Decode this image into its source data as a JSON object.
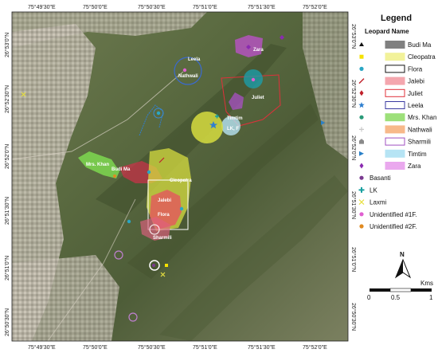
{
  "coords": {
    "top": [
      "75°49'30\"E",
      "75°50'0\"E",
      "75°50'30\"E",
      "75°51'0\"E",
      "75°51'30\"E",
      "75°52'0\"E"
    ],
    "bottom": [
      "75°49'30\"E",
      "75°50'0\"E",
      "75°50'30\"E",
      "75°51'0\"E",
      "75°51'30\"E",
      "75°52'0\"E"
    ],
    "left": [
      "26°53'0\"N",
      "26°52'30\"N",
      "26°52'0\"N",
      "26°51'30\"N",
      "26°51'0\"N",
      "26°50'30\"N"
    ],
    "right": [
      "26°53'0\"N",
      "26°52'30\"N",
      "26°52'0\"N",
      "26°51'30\"N",
      "26°51'0\"N",
      "26°50'30\"N"
    ]
  },
  "map_labels": {
    "leela": "Leela",
    "nathwali": "Nathwali",
    "zara": "Zara",
    "juliet": "Juliet",
    "timtim": "Timtim",
    "lk": "LK, F",
    "mrs_khan": "Mrs. Khan",
    "budi_ma": "Budi Ma",
    "cleopatra": "Cleopatra",
    "jalebi": "Jalebi",
    "flora": "Flora",
    "sharmili": "Sharmili"
  },
  "legend": {
    "title": "Legend",
    "subtitle": "Leopard Name",
    "rows": [
      {
        "label": "Budi Ma",
        "marker": "triangle",
        "mcolor": "#111111",
        "fill": "#808080",
        "stroke": "#808080"
      },
      {
        "label": "Cleopatra",
        "marker": "square",
        "mcolor": "#f5e100",
        "fill": "#f2f29a",
        "stroke": "#f2f29a"
      },
      {
        "label": "Flora",
        "marker": "circle",
        "mcolor": "#2aa6c4",
        "fill": "#ffffff",
        "stroke": "#111111"
      },
      {
        "label": "Jalebi",
        "marker": "slash",
        "mcolor": "#c0202a",
        "fill": "#f4a6ae",
        "stroke": "#f4a6ae"
      },
      {
        "label": "Juliet",
        "marker": "diamond",
        "mcolor": "#c0202a",
        "fill": "#ffffff",
        "stroke": "#e0303a"
      },
      {
        "label": "Leela",
        "marker": "star",
        "mcolor": "#2f7fd0",
        "fill": "#ffffff",
        "stroke": "#3a3aa0"
      },
      {
        "label": "Mrs. Khan",
        "marker": "circle",
        "mcolor": "#2a9a78",
        "fill": "#9de07a",
        "stroke": "#9de07a"
      },
      {
        "label": "Nathwali",
        "marker": "plus",
        "mcolor": "#c8c8c8",
        "fill": "#f7b98a",
        "stroke": "#f7b98a"
      },
      {
        "label": "Sharmili",
        "marker": "house",
        "mcolor": "#8a8a8a",
        "fill": "#ffffff",
        "stroke": "#a050c0"
      },
      {
        "label": "Timtim",
        "marker": "arrow",
        "mcolor": "#2a80c8",
        "fill": "#b6e4f4",
        "stroke": "#b6e4f4"
      },
      {
        "label": "Zara",
        "marker": "diamond",
        "mcolor": "#8a2ab0",
        "fill": "#eaa8ee",
        "stroke": "#eaa8ee"
      },
      {
        "label": "Basanti",
        "marker": "circle",
        "mcolor": "#7a3a90",
        "fill": "none",
        "stroke": "none"
      },
      {
        "label": "LK",
        "marker": "cross",
        "mcolor": "#1aa0a0",
        "fill": "none",
        "stroke": "none"
      },
      {
        "label": "Laxmi",
        "marker": "x",
        "mcolor": "#e8e040",
        "fill": "none",
        "stroke": "none"
      },
      {
        "label": "Unidentified #1F.",
        "marker": "circle",
        "mcolor": "#e060d0",
        "fill": "none",
        "stroke": "none"
      },
      {
        "label": "Unidentified #2F.",
        "marker": "circle",
        "mcolor": "#e08a20",
        "fill": "none",
        "stroke": "none"
      }
    ]
  },
  "scale": {
    "label_0": "0",
    "label_05": "0.5",
    "label_1": "1",
    "unit": "Kms"
  },
  "north": "N"
}
